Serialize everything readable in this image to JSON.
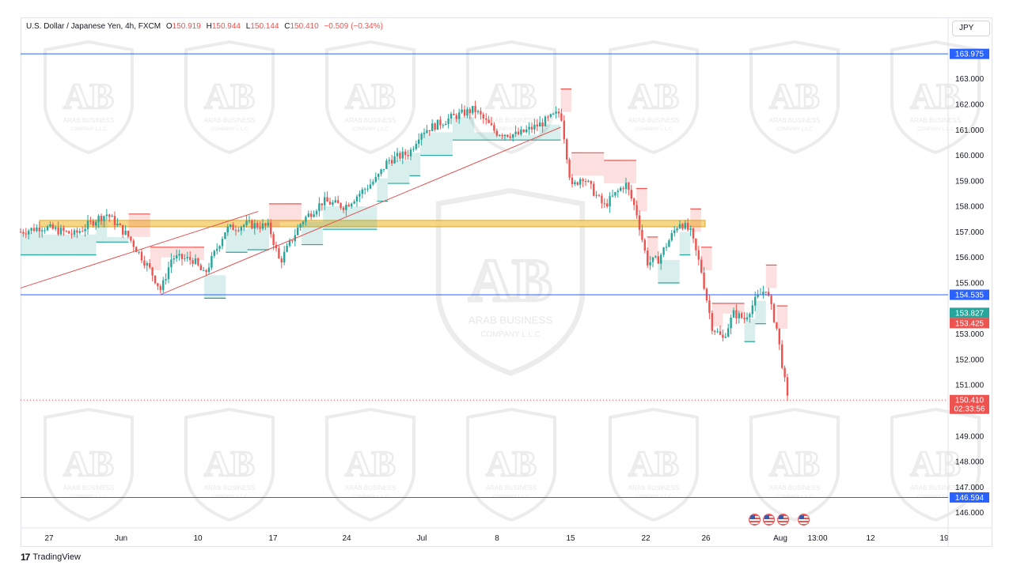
{
  "header": {
    "symbol": "U.S. Dollar / Japanese Yen, 4h, FXCM",
    "o_label": "O",
    "o_value": "150.919",
    "h_label": "H",
    "h_value": "150.944",
    "l_label": "L",
    "l_value": "150.144",
    "c_label": "C",
    "c_value": "150.410",
    "change": "−0.509 (−0.34%)"
  },
  "currency": "JPY",
  "brand": {
    "logo": "17",
    "name": "TradingView"
  },
  "watermark": {
    "line1": "ARAB BUSINESS",
    "line2": "COMPANY L.L.C",
    "letters": "AB"
  },
  "colors": {
    "up": "#26a69a",
    "down": "#ef5350",
    "level": "#2962ff",
    "zone_fill": "#f6d27a",
    "zone_border": "#d4a017",
    "trend": "#e05252"
  },
  "chart_data": {
    "type": "candlestick",
    "symbol": "USDJPY",
    "timeframe": "4h",
    "y_axis": {
      "min": 145.4,
      "max": 164.6,
      "ticks": [
        "146.000",
        "147.000",
        "148.000",
        "149.000",
        "151.000",
        "152.000",
        "153.000",
        "155.000",
        "156.000",
        "157.000",
        "158.000",
        "159.000",
        "160.000",
        "161.000",
        "162.000",
        "163.000"
      ]
    },
    "x_axis": {
      "ticks": [
        "27",
        "Jun",
        "10",
        "17",
        "24",
        "Jul",
        "8",
        "15",
        "22",
        "26",
        "Aug",
        "13:00",
        "12",
        "19"
      ]
    },
    "levels": [
      {
        "value": 163.975,
        "label": "163.975"
      },
      {
        "value": 154.535,
        "label": "154.535"
      },
      {
        "value": 146.594,
        "label": "146.594"
      }
    ],
    "current_price": {
      "value": 150.41,
      "label": "150.410",
      "countdown": "02:33:56"
    },
    "indicator_badges": [
      {
        "value": 153.827,
        "label": "153.827",
        "color": "#26a69a"
      },
      {
        "value": 153.425,
        "label": "153.425",
        "color": "#ef5350"
      }
    ],
    "supply_demand_zone": {
      "from": 157.2,
      "to": 157.45
    },
    "trendlines": [
      {
        "from": [
          "May 22",
          154.8
        ],
        "to": [
          "Jun 13",
          157.8
        ]
      },
      {
        "from": [
          "Jun 4",
          154.55
        ],
        "to": [
          "Jul 11",
          161.1
        ]
      }
    ],
    "price_path": [
      [
        "May 22",
        157.0
      ],
      [
        "May 24",
        157.2
      ],
      [
        "May 27",
        156.9
      ],
      [
        "May 29",
        157.5
      ],
      [
        "May 30",
        157.7
      ],
      [
        "Jun 1",
        156.8
      ],
      [
        "Jun 3",
        155.5
      ],
      [
        "Jun 4",
        154.7
      ],
      [
        "Jun 5",
        156.0
      ],
      [
        "Jun 7",
        155.9
      ],
      [
        "Jun 8",
        155.3
      ],
      [
        "Jun 10",
        157.1
      ],
      [
        "Jun 12",
        157.3
      ],
      [
        "Jun 14",
        157.2
      ],
      [
        "Jun 15",
        155.8
      ],
      [
        "Jun 17",
        157.4
      ],
      [
        "Jun 19",
        158.2
      ],
      [
        "Jun 21",
        158.0
      ],
      [
        "Jun 24",
        159.1
      ],
      [
        "Jun 25",
        159.8
      ],
      [
        "Jun 27",
        160.1
      ],
      [
        "Jun 28",
        160.9
      ],
      [
        "Jul 1",
        161.5
      ],
      [
        "Jul 3",
        161.8
      ],
      [
        "Jul 5",
        160.9
      ],
      [
        "Jul 7",
        160.8
      ],
      [
        "Jul 9",
        161.2
      ],
      [
        "Jul 11",
        161.7
      ],
      [
        "Jul 12",
        158.7
      ],
      [
        "Jul 13",
        159.2
      ],
      [
        "Jul 15",
        158.0
      ],
      [
        "Jul 17",
        158.9
      ],
      [
        "Jul 18",
        157.8
      ],
      [
        "Jul 19",
        155.8
      ],
      [
        "Jul 20",
        155.9
      ],
      [
        "Jul 22",
        157.4
      ],
      [
        "Jul 23",
        157.0
      ],
      [
        "Jul 24",
        155.5
      ],
      [
        "Jul 25",
        153.3
      ],
      [
        "Jul 26",
        152.8
      ],
      [
        "Jul 27",
        153.8
      ],
      [
        "Jul 28",
        153.6
      ],
      [
        "Jul 29",
        154.3
      ],
      [
        "Jul 30",
        154.8
      ],
      [
        "Jul 31",
        153.2
      ],
      [
        "Aug 1",
        150.41
      ]
    ]
  }
}
